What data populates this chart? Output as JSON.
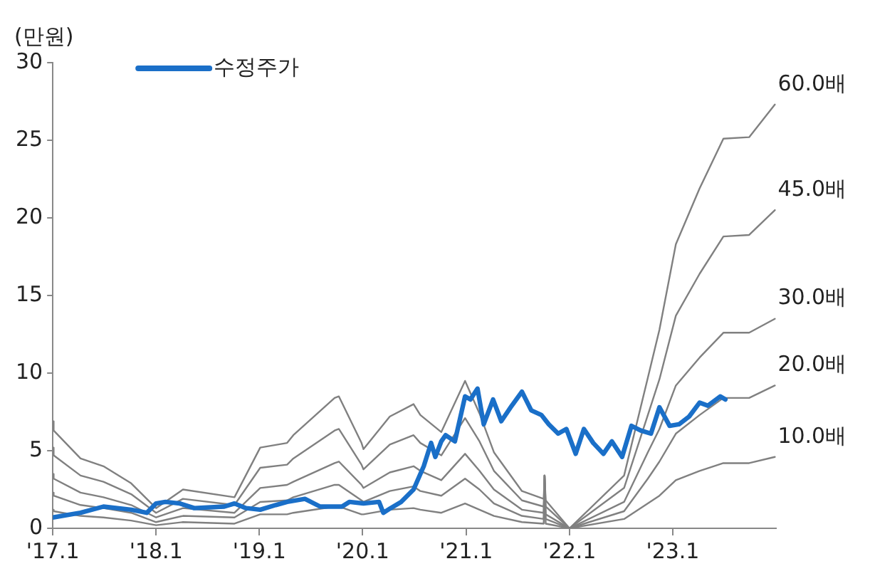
{
  "chart_data": {
    "type": "line",
    "ylabel": "(만원)",
    "xlim": [
      "2017-01-01",
      "2024-01-01"
    ],
    "xticks": [
      {
        "value": "2017-01",
        "label": "'17.1"
      },
      {
        "value": "2018-01",
        "label": "'18.1"
      },
      {
        "value": "2019-01",
        "label": "'19.1"
      },
      {
        "value": "2020-01",
        "label": "'20.1"
      },
      {
        "value": "2021-01",
        "label": "'21.1"
      },
      {
        "value": "2022-01",
        "label": "'22.1"
      },
      {
        "value": "2023-01",
        "label": "'23.1"
      }
    ],
    "ylim": [
      0,
      30
    ],
    "yticks": [
      0,
      5,
      10,
      15,
      20,
      25,
      30
    ],
    "grid": false,
    "legend": "top left",
    "marker": "none",
    "line_style": "solid",
    "series": [
      {
        "name": "수정주가",
        "color": "#1a6fc8",
        "x": [
          "2017-01-01",
          "2017-04-09",
          "2017-06-29",
          "2017-10-05",
          "2017-11-29",
          "2018-01-01",
          "2018-02-03",
          "2018-03-26",
          "2018-05-16",
          "2018-08-30",
          "2018-10-05",
          "2018-11-15",
          "2019-01-04",
          "2019-02-28",
          "2019-04-09",
          "2019-06-11",
          "2019-08-04",
          "2019-10-20",
          "2019-11-15",
          "2020-01-04",
          "2020-02-28",
          "2020-03-14",
          "2020-04-09",
          "2020-05-16",
          "2020-06-29",
          "2020-08-04",
          "2020-08-30",
          "2020-09-14",
          "2020-10-05",
          "2020-10-20",
          "2020-11-22",
          "2020-12-28",
          "2021-01-16",
          "2021-02-10",
          "2021-03-04",
          "2021-04-06",
          "2021-05-05",
          "2021-06-11",
          "2021-07-17",
          "2021-08-19",
          "2021-09-24",
          "2021-10-20",
          "2021-11-22",
          "2021-12-21",
          "2022-01-23",
          "2022-02-21",
          "2022-03-26",
          "2022-05-01",
          "2022-05-31",
          "2022-07-06",
          "2022-08-08",
          "2022-09-10",
          "2022-10-16",
          "2022-11-15",
          "2022-12-21",
          "2023-01-23",
          "2023-02-28",
          "2023-04-06",
          "2023-05-05",
          "2023-06-18",
          "2023-07-06"
        ],
        "values": [
          0.7,
          1.0,
          1.4,
          1.2,
          1.0,
          1.6,
          1.7,
          1.6,
          1.3,
          1.4,
          1.6,
          1.3,
          1.2,
          1.5,
          1.7,
          1.9,
          1.4,
          1.4,
          1.7,
          1.6,
          1.7,
          1.0,
          1.3,
          1.7,
          2.5,
          4.0,
          5.5,
          4.6,
          5.6,
          6.0,
          5.6,
          8.5,
          8.3,
          9.0,
          6.7,
          8.3,
          6.9,
          7.9,
          8.8,
          7.6,
          7.3,
          6.7,
          6.1,
          6.4,
          4.8,
          6.4,
          5.5,
          4.8,
          5.6,
          4.6,
          6.6,
          6.3,
          6.1,
          7.8,
          6.6,
          6.7,
          7.2,
          8.1,
          7.9,
          8.5,
          8.3
        ]
      },
      {
        "name": "60.0배",
        "color": "#808080",
        "x": [
          "2017-01-01",
          "2017-01-04",
          "2017-04-09",
          "2017-06-29",
          "2017-10-05",
          "2018-01-01",
          "2018-04-06",
          "2018-10-05",
          "2019-01-04",
          "2019-04-09",
          "2019-05-01",
          "2019-09-24",
          "2019-10-09",
          "2019-12-28",
          "2020-01-04",
          "2020-04-06",
          "2020-06-29",
          "2020-07-23",
          "2020-10-05",
          "2020-12-28",
          "2021-02-17",
          "2021-04-09",
          "2021-07-17",
          "2021-10-02",
          "2021-10-05",
          "2021-10-09",
          "2022-01-01",
          "2022-07-13",
          "2022-10-05",
          "2022-11-15",
          "2023-01-12",
          "2023-04-06",
          "2023-06-29",
          "2023-09-28",
          "2023-12-28"
        ],
        "values": [
          6.9,
          6.3,
          4.5,
          4.0,
          2.9,
          1.3,
          2.5,
          2.0,
          5.2,
          5.5,
          6.0,
          8.4,
          8.5,
          5.5,
          5.1,
          7.2,
          8.0,
          7.3,
          6.2,
          9.5,
          7.4,
          4.9,
          2.4,
          1.9,
          3.4,
          1.8,
          0,
          3.4,
          9.7,
          12.8,
          18.3,
          21.9,
          25.1,
          25.2,
          27.3
        ]
      },
      {
        "name": "45.0배",
        "color": "#808080",
        "x": [
          "2017-01-01",
          "2017-01-04",
          "2017-04-09",
          "2017-06-29",
          "2017-10-05",
          "2018-01-01",
          "2018-04-06",
          "2018-10-05",
          "2019-01-04",
          "2019-04-09",
          "2019-05-01",
          "2019-09-24",
          "2019-10-09",
          "2019-12-28",
          "2020-01-04",
          "2020-04-06",
          "2020-06-29",
          "2020-07-23",
          "2020-10-05",
          "2020-12-28",
          "2021-02-17",
          "2021-04-09",
          "2021-07-17",
          "2021-10-02",
          "2021-10-05",
          "2021-10-09",
          "2022-01-01",
          "2022-07-13",
          "2022-10-05",
          "2022-11-15",
          "2023-01-12",
          "2023-04-06",
          "2023-06-29",
          "2023-09-28",
          "2023-12-28"
        ],
        "values": [
          5.2,
          4.7,
          3.4,
          3.0,
          2.2,
          1.0,
          1.9,
          1.5,
          3.9,
          4.1,
          4.5,
          6.3,
          6.4,
          4.1,
          3.8,
          5.4,
          6.0,
          5.5,
          4.7,
          7.1,
          5.6,
          3.7,
          1.8,
          1.4,
          3.4,
          1.4,
          0,
          2.6,
          7.3,
          9.6,
          13.7,
          16.4,
          18.8,
          18.9,
          20.5
        ]
      },
      {
        "name": "30.0배",
        "color": "#808080",
        "x": [
          "2017-01-01",
          "2017-01-04",
          "2017-04-09",
          "2017-06-29",
          "2017-10-05",
          "2018-01-01",
          "2018-04-06",
          "2018-10-05",
          "2019-01-04",
          "2019-04-09",
          "2019-05-01",
          "2019-09-24",
          "2019-10-09",
          "2019-12-28",
          "2020-01-04",
          "2020-04-06",
          "2020-06-29",
          "2020-07-23",
          "2020-10-05",
          "2020-12-28",
          "2021-02-17",
          "2021-04-09",
          "2021-07-17",
          "2021-10-02",
          "2021-10-05",
          "2021-10-09",
          "2022-01-01",
          "2022-07-13",
          "2022-10-05",
          "2022-11-15",
          "2023-01-12",
          "2023-04-06",
          "2023-06-29",
          "2023-09-28",
          "2023-12-28"
        ],
        "values": [
          3.5,
          3.2,
          2.3,
          2.0,
          1.5,
          0.7,
          1.3,
          1.0,
          2.6,
          2.8,
          3.0,
          4.2,
          4.3,
          2.8,
          2.6,
          3.6,
          4.0,
          3.7,
          3.1,
          4.8,
          3.7,
          2.5,
          1.2,
          1.0,
          3.4,
          0.9,
          0,
          1.7,
          4.9,
          6.4,
          9.2,
          11.0,
          12.6,
          12.6,
          13.5
        ]
      },
      {
        "name": "20.0배",
        "color": "#808080",
        "x": [
          "2017-01-01",
          "2017-01-04",
          "2017-04-09",
          "2017-06-29",
          "2017-10-05",
          "2018-01-01",
          "2018-04-06",
          "2018-10-05",
          "2019-01-04",
          "2019-04-09",
          "2019-05-01",
          "2019-09-24",
          "2019-10-09",
          "2019-12-28",
          "2020-01-04",
          "2020-04-06",
          "2020-06-29",
          "2020-07-23",
          "2020-10-05",
          "2020-12-28",
          "2021-02-17",
          "2021-04-09",
          "2021-07-17",
          "2021-10-02",
          "2021-10-05",
          "2021-10-09",
          "2022-01-01",
          "2022-07-13",
          "2022-10-05",
          "2022-11-15",
          "2023-01-12",
          "2023-04-06",
          "2023-06-29",
          "2023-09-28",
          "2023-12-28"
        ],
        "values": [
          2.3,
          2.1,
          1.5,
          1.3,
          1.0,
          0.4,
          0.8,
          0.7,
          1.7,
          1.8,
          2.0,
          2.8,
          2.8,
          1.8,
          1.7,
          2.4,
          2.7,
          2.4,
          2.1,
          3.2,
          2.5,
          1.6,
          0.8,
          0.6,
          3.4,
          0.6,
          0,
          1.1,
          3.2,
          4.3,
          6.1,
          7.3,
          8.4,
          8.4,
          9.2
        ]
      },
      {
        "name": "10.0배",
        "color": "#808080",
        "x": [
          "2017-01-01",
          "2017-01-04",
          "2017-04-09",
          "2017-06-29",
          "2017-10-05",
          "2018-01-01",
          "2018-04-06",
          "2018-10-05",
          "2019-01-04",
          "2019-04-09",
          "2019-05-01",
          "2019-09-24",
          "2019-10-09",
          "2019-12-28",
          "2020-01-04",
          "2020-04-06",
          "2020-06-29",
          "2020-07-23",
          "2020-10-05",
          "2020-12-28",
          "2021-02-17",
          "2021-04-09",
          "2021-07-17",
          "2021-10-02",
          "2021-10-05",
          "2021-10-09",
          "2022-01-01",
          "2022-07-13",
          "2022-10-05",
          "2022-11-15",
          "2023-01-12",
          "2023-04-06",
          "2023-06-29",
          "2023-09-28",
          "2023-12-28"
        ],
        "values": [
          1.2,
          1.1,
          0.8,
          0.7,
          0.5,
          0.2,
          0.4,
          0.3,
          0.9,
          0.9,
          1.0,
          1.4,
          1.4,
          0.9,
          0.9,
          1.2,
          1.3,
          1.2,
          1.0,
          1.6,
          1.2,
          0.8,
          0.4,
          0.3,
          3.4,
          0.3,
          0,
          0.6,
          1.6,
          2.1,
          3.1,
          3.7,
          4.2,
          4.2,
          4.6
        ]
      }
    ]
  }
}
